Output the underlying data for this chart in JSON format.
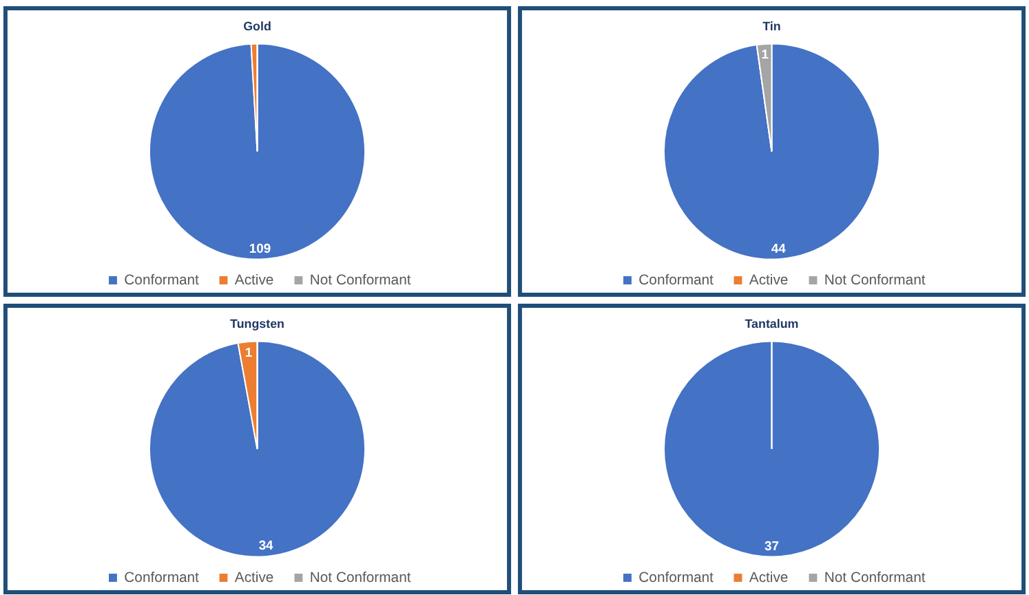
{
  "chart_data": [
    {
      "type": "pie",
      "title": "Gold",
      "categories": [
        "Conformant",
        "Active",
        "Not Conformant"
      ],
      "values": [
        109,
        1,
        0
      ],
      "colors": [
        "#4472c4",
        "#ed7d31",
        "#a5a5a5"
      ],
      "value_labels": [
        "109",
        null,
        null
      ],
      "legend": "bottom"
    },
    {
      "type": "pie",
      "title": "Tin",
      "categories": [
        "Conformant",
        "Active",
        "Not Conformant"
      ],
      "values": [
        44,
        0,
        1
      ],
      "colors": [
        "#4472c4",
        "#ed7d31",
        "#a5a5a5"
      ],
      "value_labels": [
        "44",
        null,
        "1"
      ],
      "legend": "bottom"
    },
    {
      "type": "pie",
      "title": "Tungsten",
      "categories": [
        "Conformant",
        "Active",
        "Not Conformant"
      ],
      "values": [
        34,
        1,
        0
      ],
      "colors": [
        "#4472c4",
        "#ed7d31",
        "#a5a5a5"
      ],
      "value_labels": [
        "34",
        "1",
        null
      ],
      "legend": "bottom"
    },
    {
      "type": "pie",
      "title": "Tantalum",
      "categories": [
        "Conformant",
        "Active",
        "Not Conformant"
      ],
      "values": [
        37,
        0,
        0
      ],
      "colors": [
        "#4472c4",
        "#ed7d31",
        "#a5a5a5"
      ],
      "value_labels": [
        "37",
        null,
        null
      ],
      "legend": "bottom"
    }
  ]
}
